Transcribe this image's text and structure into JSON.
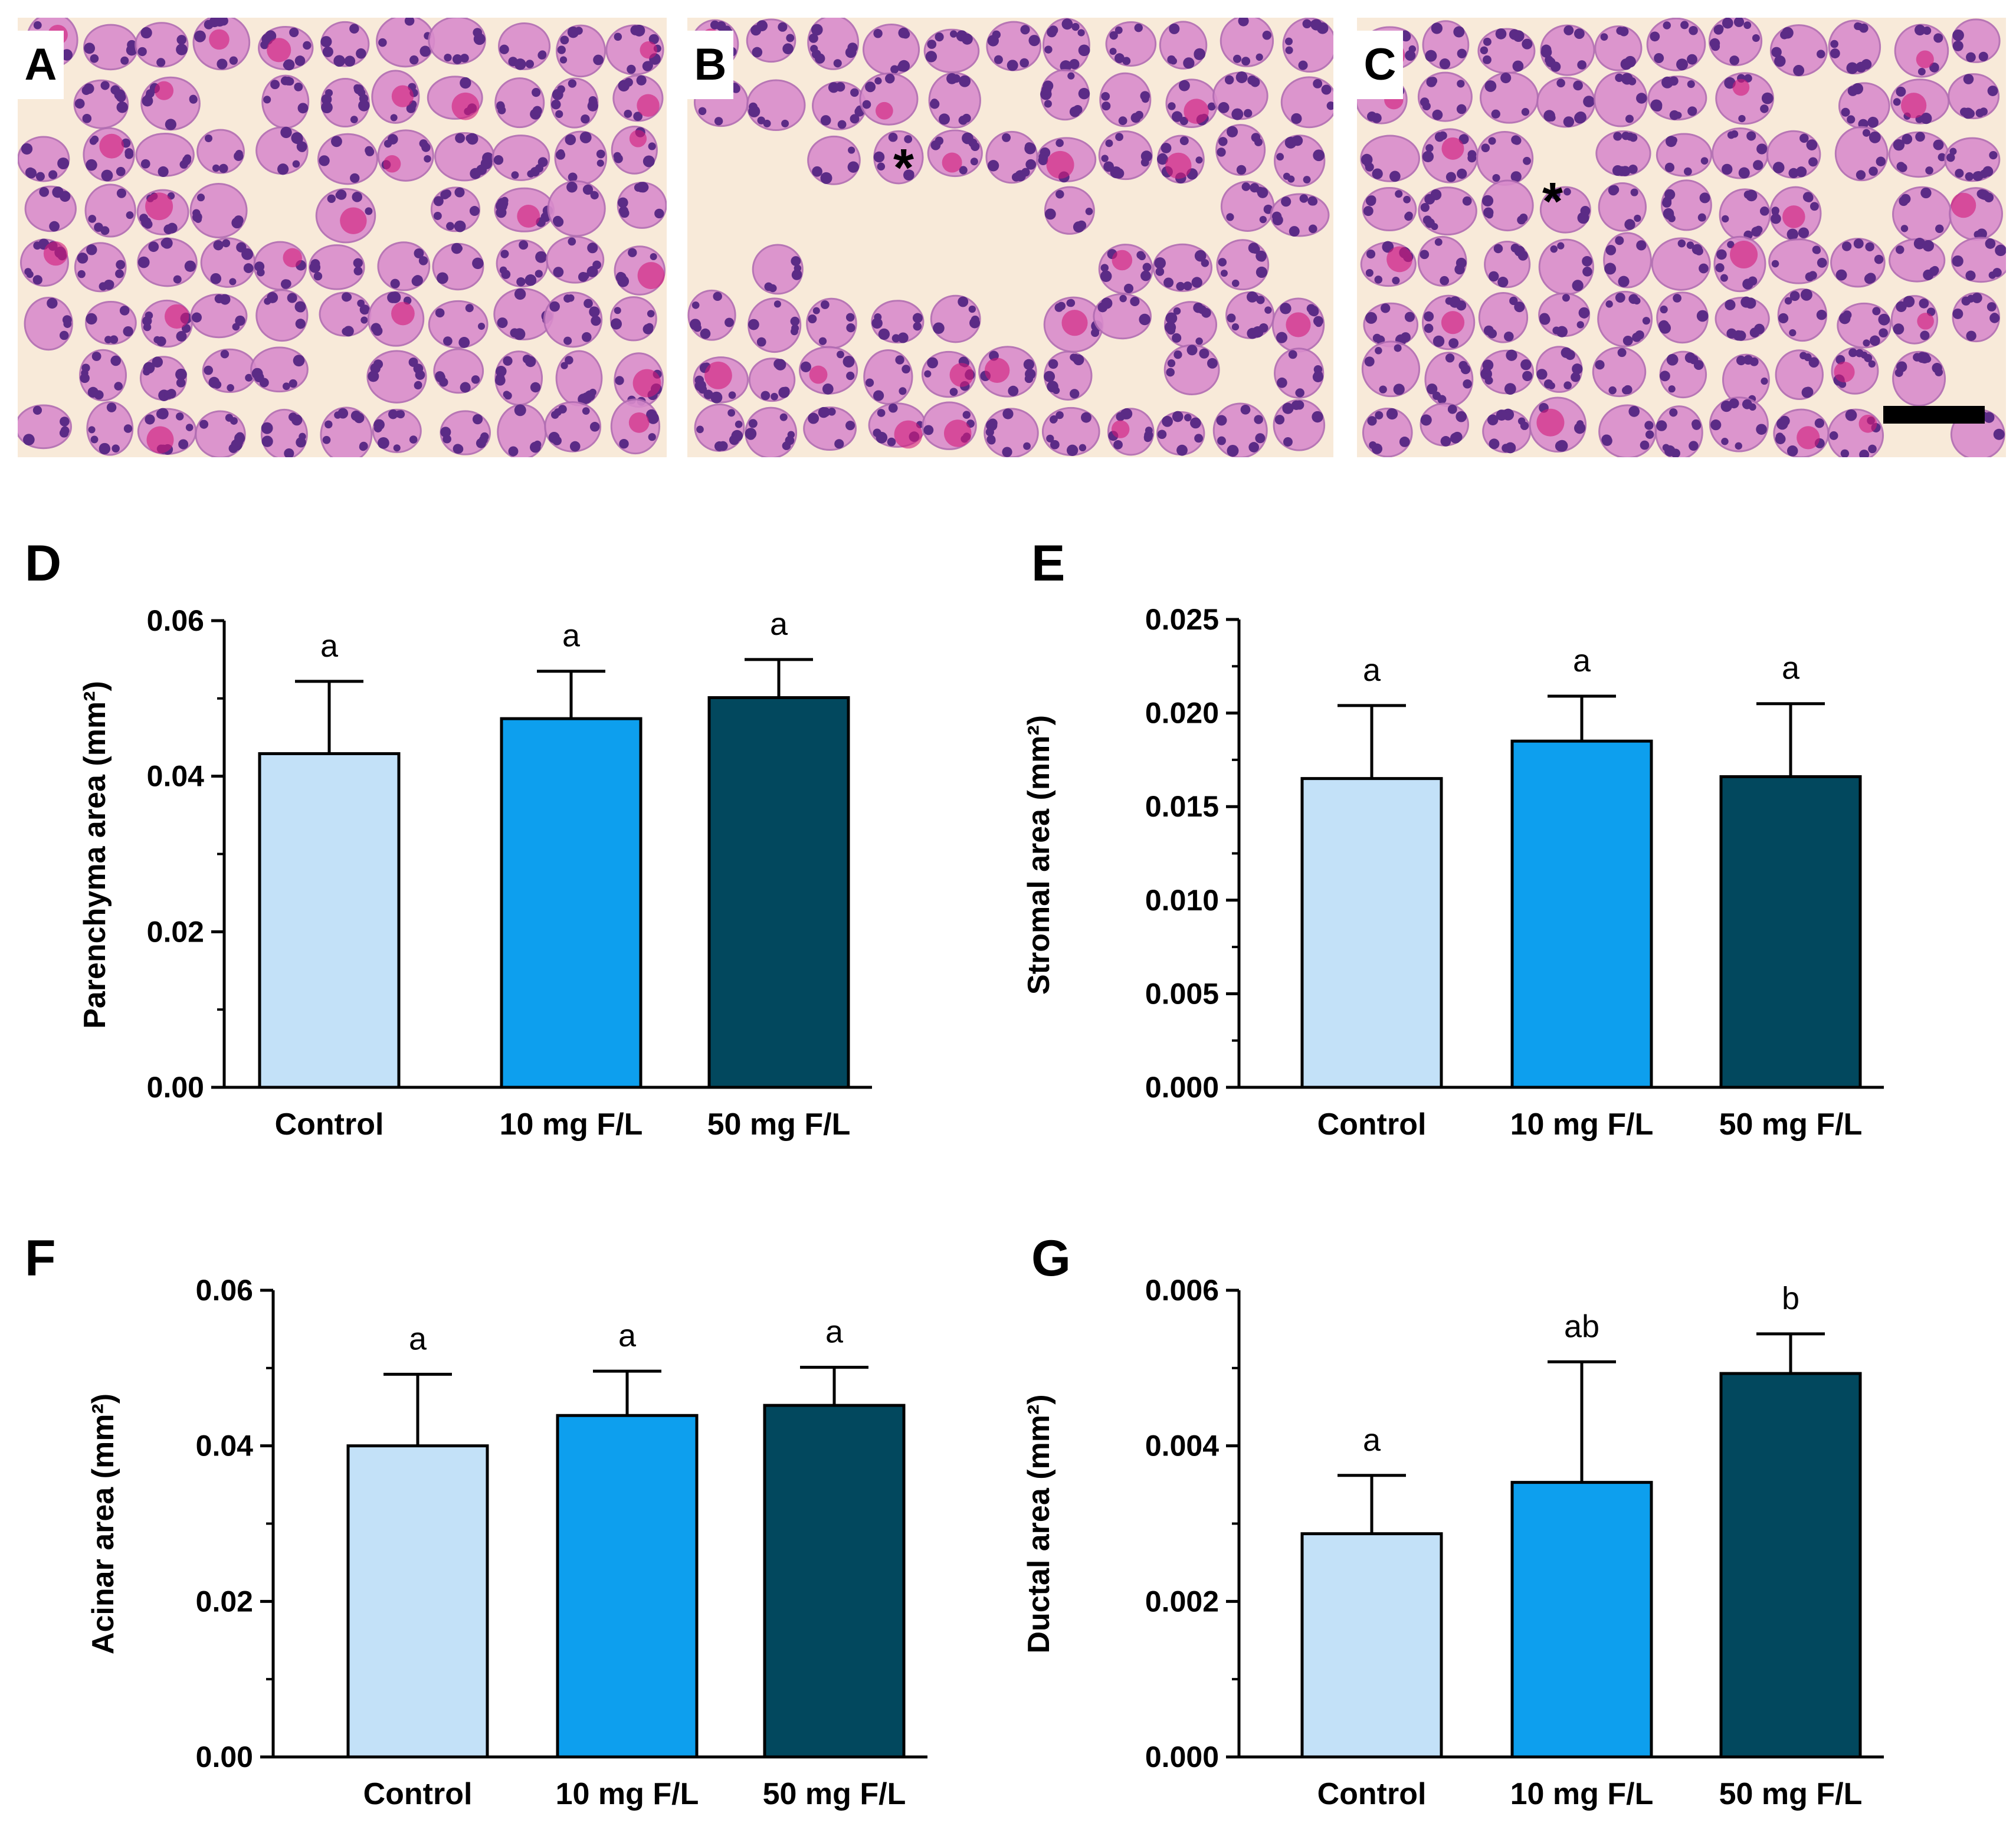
{
  "panels": {
    "A": "A",
    "B": "B",
    "C": "C",
    "D": "D",
    "E": "E",
    "F": "F",
    "G": "G"
  },
  "micrograph_marker": "*",
  "colors": {
    "control": "#c3e1f8",
    "f10": "#0d9fee",
    "f50": "#02485e",
    "stain_bg": "#f8ead9",
    "cell_fill": "#d98ccc",
    "nucleus": "#5b2b86"
  },
  "chart_data": [
    {
      "type": "bar",
      "panel": "D",
      "categories": [
        "Control",
        "10 mg F/L",
        "50 mg F/L"
      ],
      "values": [
        0.0429,
        0.0474,
        0.0501
      ],
      "errors": [
        0.0093,
        0.0061,
        0.0049
      ],
      "letters": [
        "a",
        "a",
        "a"
      ],
      "ylabel": "Parenchyma area (mm²)",
      "ylim": [
        0,
        0.06
      ],
      "ticks": [
        "0.00",
        "0.02",
        "0.04",
        "0.06"
      ]
    },
    {
      "type": "bar",
      "panel": "E",
      "categories": [
        "Control",
        "10 mg F/L",
        "50 mg F/L"
      ],
      "values": [
        0.0165,
        0.0185,
        0.0166
      ],
      "errors": [
        0.0039,
        0.0024,
        0.0039
      ],
      "letters": [
        "a",
        "a",
        "a"
      ],
      "ylabel": "Stromal area (mm²)",
      "ylim": [
        0,
        0.025
      ],
      "ticks": [
        "0.000",
        "0.005",
        "0.010",
        "0.015",
        "0.020",
        "0.025"
      ]
    },
    {
      "type": "bar",
      "panel": "F",
      "categories": [
        "Control",
        "10 mg F/L",
        "50 mg F/L"
      ],
      "values": [
        0.04,
        0.0439,
        0.0452
      ],
      "errors": [
        0.0092,
        0.0057,
        0.0049
      ],
      "letters": [
        "a",
        "a",
        "a"
      ],
      "ylabel": "Acinar area (mm²)",
      "ylim": [
        0,
        0.06
      ],
      "ticks": [
        "0.00",
        "0.02",
        "0.04",
        "0.06"
      ]
    },
    {
      "type": "bar",
      "panel": "G",
      "categories": [
        "Control",
        "10 mg F/L",
        "50 mg F/L"
      ],
      "values": [
        0.00287,
        0.00353,
        0.00493
      ],
      "errors": [
        0.00075,
        0.00155,
        0.00051
      ],
      "letters": [
        "a",
        "ab",
        "b"
      ],
      "ylabel": "Ductal area (mm²)",
      "ylim": [
        0,
        0.006
      ],
      "ticks": [
        "0.000",
        "0.002",
        "0.004",
        "0.006"
      ]
    }
  ]
}
